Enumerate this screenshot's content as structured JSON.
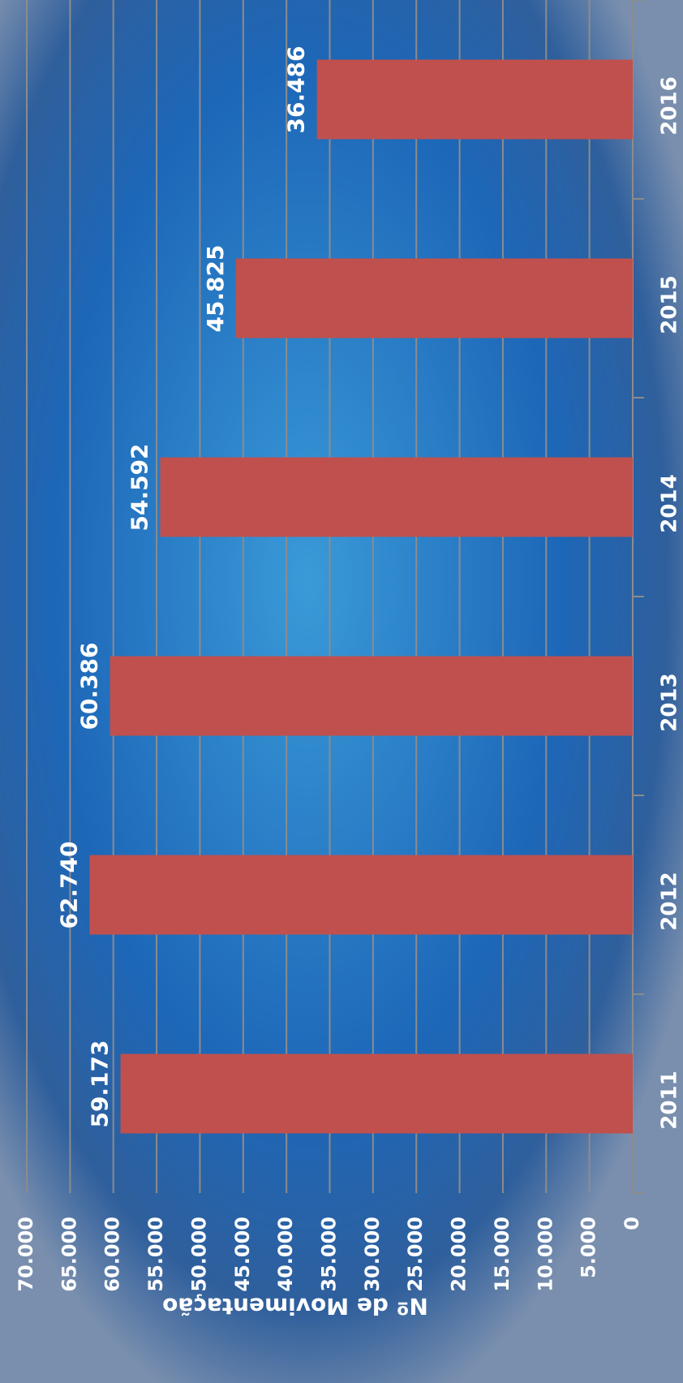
{
  "chart_data": {
    "type": "bar",
    "orientation": "rotated",
    "y_axis_label": "Nº de Movimentação",
    "categories": [
      "2011",
      "2012",
      "2013",
      "2014",
      "2015",
      "2016"
    ],
    "values": [
      59173,
      62740,
      60386,
      54592,
      45825,
      36486
    ],
    "value_labels": [
      "59.173",
      "62.740",
      "60.386",
      "54.592",
      "45.825",
      "36.486"
    ],
    "color": "#c0504d",
    "ylim": [
      0,
      70000
    ],
    "yticks": [
      0,
      {
        "value": 5000,
        "label": "5.000"
      },
      {
        "value": 10000,
        "label": "10.000"
      },
      {
        "value": 15000,
        "label": "15.000"
      },
      {
        "value": 20000,
        "label": "20.000"
      },
      {
        "value": 25000,
        "label": "25.000"
      },
      {
        "value": 30000,
        "label": "30.000"
      },
      {
        "value": 35000,
        "label": "35.000"
      },
      {
        "value": 40000,
        "label": "40.000"
      },
      {
        "value": 45000,
        "label": "45.000"
      },
      {
        "value": 50000,
        "label": "50.000"
      },
      {
        "value": 55000,
        "label": "55.000"
      },
      {
        "value": 60000,
        "label": "60.000"
      },
      {
        "value": 65000,
        "label": "65.000"
      },
      {
        "value": 70000,
        "label": "70.000"
      }
    ],
    "grid": true
  }
}
